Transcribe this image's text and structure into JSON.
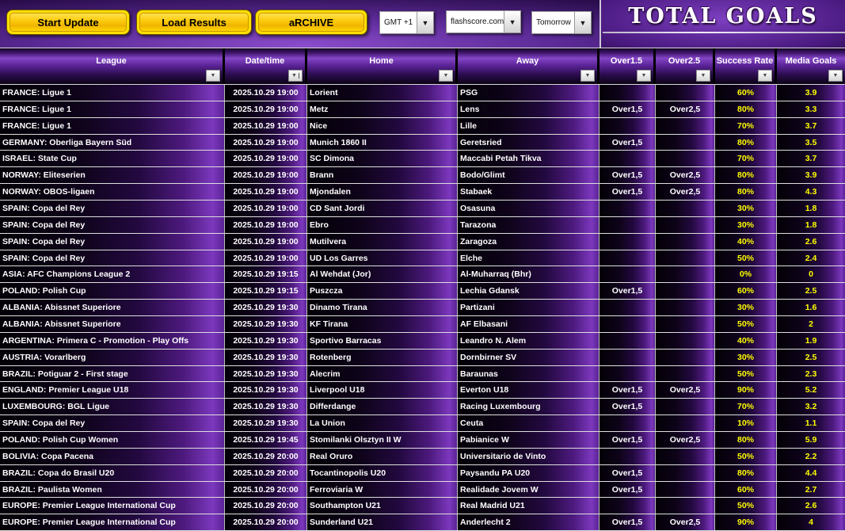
{
  "toolbar": {
    "start_update_label": "Start Update",
    "load_results_label": "Load Results",
    "archive_label": "aRCHIVE",
    "timezone_value": "GMT +1",
    "source_value": "flashscore.com",
    "day_value": "Tomorrow"
  },
  "header": {
    "title": "TOTAL GOALS"
  },
  "colors": {
    "accent_purple": "#7c38bd",
    "value_yellow": "#ffff00",
    "button_gold": "#ffd700"
  },
  "table": {
    "columns": [
      "League",
      "Date/time",
      "Home",
      "Away",
      "Over1.5",
      "Over2.5",
      "Success Rate",
      "Media Goals"
    ],
    "rows": [
      {
        "league": "FRANCE: Ligue 1",
        "datetime": "2025.10.29 19:00",
        "home": "Lorient",
        "away": "PSG",
        "over15": "",
        "over25": "",
        "success_rate": "60%",
        "media_goals": "3.9"
      },
      {
        "league": "FRANCE: Ligue 1",
        "datetime": "2025.10.29 19:00",
        "home": "Metz",
        "away": "Lens",
        "over15": "Over1,5",
        "over25": "Over2,5",
        "success_rate": "80%",
        "media_goals": "3.3"
      },
      {
        "league": "FRANCE: Ligue 1",
        "datetime": "2025.10.29 19:00",
        "home": "Nice",
        "away": "Lille",
        "over15": "",
        "over25": "",
        "success_rate": "70%",
        "media_goals": "3.7"
      },
      {
        "league": "GERMANY: Oberliga Bayern Süd",
        "datetime": "2025.10.29 19:00",
        "home": "Munich 1860 II",
        "away": "Geretsried",
        "over15": "Over1,5",
        "over25": "",
        "success_rate": "80%",
        "media_goals": "3.5"
      },
      {
        "league": "ISRAEL: State Cup",
        "datetime": "2025.10.29 19:00",
        "home": "SC Dimona",
        "away": "Maccabi Petah Tikva",
        "over15": "",
        "over25": "",
        "success_rate": "70%",
        "media_goals": "3.7"
      },
      {
        "league": "NORWAY: Eliteserien",
        "datetime": "2025.10.29 19:00",
        "home": "Brann",
        "away": "Bodo/Glimt",
        "over15": "Over1,5",
        "over25": "Over2,5",
        "success_rate": "80%",
        "media_goals": "3.9"
      },
      {
        "league": "NORWAY: OBOS-ligaen",
        "datetime": "2025.10.29 19:00",
        "home": "Mjondalen",
        "away": "Stabaek",
        "over15": "Over1,5",
        "over25": "Over2,5",
        "success_rate": "80%",
        "media_goals": "4.3"
      },
      {
        "league": "SPAIN: Copa del Rey",
        "datetime": "2025.10.29 19:00",
        "home": "CD Sant Jordi",
        "away": "Osasuna",
        "over15": "",
        "over25": "",
        "success_rate": "30%",
        "media_goals": "1.8"
      },
      {
        "league": "SPAIN: Copa del Rey",
        "datetime": "2025.10.29 19:00",
        "home": "Ebro",
        "away": "Tarazona",
        "over15": "",
        "over25": "",
        "success_rate": "30%",
        "media_goals": "1.8"
      },
      {
        "league": "SPAIN: Copa del Rey",
        "datetime": "2025.10.29 19:00",
        "home": "Mutilvera",
        "away": "Zaragoza",
        "over15": "",
        "over25": "",
        "success_rate": "40%",
        "media_goals": "2.6"
      },
      {
        "league": "SPAIN: Copa del Rey",
        "datetime": "2025.10.29 19:00",
        "home": "UD Los Garres",
        "away": "Elche",
        "over15": "",
        "over25": "",
        "success_rate": "50%",
        "media_goals": "2.4"
      },
      {
        "league": "ASIA: AFC Champions League 2",
        "datetime": "2025.10.29 19:15",
        "home": "Al Wehdat (Jor)",
        "away": "Al-Muharraq (Bhr)",
        "over15": "",
        "over25": "",
        "success_rate": "0%",
        "media_goals": "0"
      },
      {
        "league": "POLAND: Polish Cup",
        "datetime": "2025.10.29 19:15",
        "home": "Puszcza",
        "away": "Lechia Gdansk",
        "over15": "Over1,5",
        "over25": "",
        "success_rate": "60%",
        "media_goals": "2.5"
      },
      {
        "league": "ALBANIA: Abissnet Superiore",
        "datetime": "2025.10.29 19:30",
        "home": "Dinamo Tirana",
        "away": "Partizani",
        "over15": "",
        "over25": "",
        "success_rate": "30%",
        "media_goals": "1.6"
      },
      {
        "league": "ALBANIA: Abissnet Superiore",
        "datetime": "2025.10.29 19:30",
        "home": "KF Tirana",
        "away": "AF Elbasani",
        "over15": "",
        "over25": "",
        "success_rate": "50%",
        "media_goals": "2"
      },
      {
        "league": "ARGENTINA: Primera C - Promotion - Play Offs",
        "datetime": "2025.10.29 19:30",
        "home": "Sportivo Barracas",
        "away": "Leandro N. Alem",
        "over15": "",
        "over25": "",
        "success_rate": "40%",
        "media_goals": "1.9"
      },
      {
        "league": "AUSTRIA: Vorarlberg",
        "datetime": "2025.10.29 19:30",
        "home": "Rotenberg",
        "away": "Dornbirner SV",
        "over15": "",
        "over25": "",
        "success_rate": "30%",
        "media_goals": "2.5"
      },
      {
        "league": "BRAZIL: Potiguar 2 - First stage",
        "datetime": "2025.10.29 19:30",
        "home": "Alecrim",
        "away": "Baraunas",
        "over15": "",
        "over25": "",
        "success_rate": "50%",
        "media_goals": "2.3"
      },
      {
        "league": "ENGLAND: Premier League U18",
        "datetime": "2025.10.29 19:30",
        "home": "Liverpool U18",
        "away": "Everton U18",
        "over15": "Over1,5",
        "over25": "Over2,5",
        "success_rate": "90%",
        "media_goals": "5.2"
      },
      {
        "league": "LUXEMBOURG: BGL Ligue",
        "datetime": "2025.10.29 19:30",
        "home": "Differdange",
        "away": "Racing Luxembourg",
        "over15": "Over1,5",
        "over25": "",
        "success_rate": "70%",
        "media_goals": "3.2"
      },
      {
        "league": "SPAIN: Copa del Rey",
        "datetime": "2025.10.29 19:30",
        "home": "La Union",
        "away": "Ceuta",
        "over15": "",
        "over25": "",
        "success_rate": "10%",
        "media_goals": "1.1"
      },
      {
        "league": "POLAND: Polish Cup Women",
        "datetime": "2025.10.29 19:45",
        "home": "Stomilanki Olsztyn II W",
        "away": "Pabianice W",
        "over15": "Over1,5",
        "over25": "Over2,5",
        "success_rate": "80%",
        "media_goals": "5.9"
      },
      {
        "league": "BOLIVIA: Copa Pacena",
        "datetime": "2025.10.29 20:00",
        "home": "Real Oruro",
        "away": "Universitario de Vinto",
        "over15": "",
        "over25": "",
        "success_rate": "50%",
        "media_goals": "2.2"
      },
      {
        "league": "BRAZIL: Copa do Brasil U20",
        "datetime": "2025.10.29 20:00",
        "home": "Tocantinopolis U20",
        "away": "Paysandu PA U20",
        "over15": "Over1,5",
        "over25": "",
        "success_rate": "80%",
        "media_goals": "4.4"
      },
      {
        "league": "BRAZIL: Paulista Women",
        "datetime": "2025.10.29 20:00",
        "home": "Ferroviaria W",
        "away": "Realidade Jovem W",
        "over15": "Over1,5",
        "over25": "",
        "success_rate": "60%",
        "media_goals": "2.7"
      },
      {
        "league": "EUROPE: Premier League International Cup",
        "datetime": "2025.10.29 20:00",
        "home": "Southampton U21",
        "away": "Real Madrid U21",
        "over15": "",
        "over25": "",
        "success_rate": "50%",
        "media_goals": "2.6"
      },
      {
        "league": "EUROPE: Premier League International Cup",
        "datetime": "2025.10.29 20:00",
        "home": "Sunderland U21",
        "away": "Anderlecht 2",
        "over15": "Over1,5",
        "over25": "Over2,5",
        "success_rate": "90%",
        "media_goals": "4"
      }
    ]
  }
}
